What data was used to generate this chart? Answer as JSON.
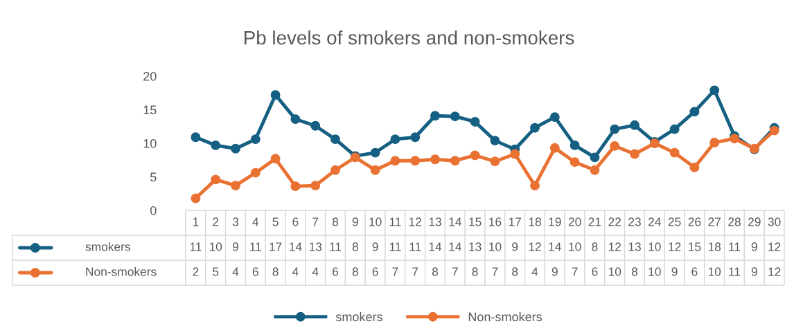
{
  "chart_data": {
    "type": "line",
    "title": "Pb levels of smokers and non-smokers",
    "categories": [
      "1",
      "2",
      "3",
      "4",
      "5",
      "6",
      "7",
      "8",
      "9",
      "10",
      "11",
      "12",
      "13",
      "14",
      "15",
      "16",
      "17",
      "18",
      "19",
      "20",
      "21",
      "22",
      "23",
      "24",
      "25",
      "26",
      "27",
      "28",
      "29",
      "30"
    ],
    "series": [
      {
        "name": "smokers",
        "color": "#156082",
        "values": [
          10.9,
          9.7,
          9.2,
          10.6,
          17.2,
          13.6,
          12.6,
          10.6,
          8.1,
          8.6,
          10.6,
          10.9,
          14.1,
          14.0,
          13.2,
          10.4,
          9.1,
          12.3,
          13.9,
          9.7,
          7.9,
          12.1,
          12.7,
          10.2,
          12.1,
          14.7,
          17.9,
          11.1,
          9.1,
          12.3
        ],
        "value_labels": [
          "11",
          "10",
          "9",
          "11",
          "17",
          "14",
          "13",
          "11",
          "8",
          "9",
          "11",
          "11",
          "14",
          "14",
          "13",
          "10",
          "9",
          "12",
          "14",
          "10",
          "8",
          "12",
          "13",
          "10",
          "12",
          "15",
          "18",
          "11",
          "9",
          "12"
        ]
      },
      {
        "name": "Non-smokers",
        "color": "#e97132",
        "values": [
          1.8,
          4.6,
          3.7,
          5.6,
          7.7,
          3.6,
          3.7,
          6.0,
          7.9,
          6.0,
          7.4,
          7.4,
          7.6,
          7.4,
          8.2,
          7.3,
          8.4,
          3.7,
          9.3,
          7.2,
          6.0,
          9.6,
          8.4,
          10.0,
          8.6,
          6.4,
          10.1,
          10.7,
          9.2,
          11.9
        ],
        "value_labels": [
          "2",
          "5",
          "4",
          "6",
          "8",
          "4",
          "4",
          "6",
          "8",
          "6",
          "7",
          "7",
          "8",
          "7",
          "8",
          "7",
          "8",
          "4",
          "9",
          "7",
          "6",
          "10",
          "8",
          "10",
          "9",
          "6",
          "10",
          "11",
          "9",
          "12"
        ]
      }
    ],
    "ylim": [
      0,
      20
    ],
    "yticks": [
      0,
      5,
      10,
      15,
      20
    ],
    "grid": false,
    "legend": "bottom",
    "marker": "circle",
    "line_style": "solid"
  }
}
